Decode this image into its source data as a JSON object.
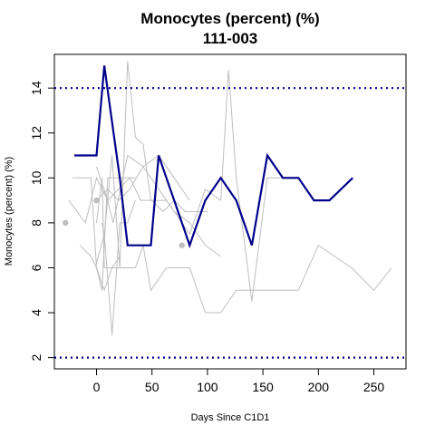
{
  "chart_data": {
    "type": "line",
    "title": "Monocytes (percent) (%)",
    "subtitle": "111-003",
    "xlabel": "Days Since C1D1",
    "ylabel": "Monocytes (percent) (%)",
    "xlim": [
      -38,
      279
    ],
    "ylim": [
      1.5,
      15.5
    ],
    "xticks": [
      0,
      50,
      100,
      150,
      200,
      250
    ],
    "yticks": [
      2,
      4,
      6,
      8,
      10,
      12,
      14
    ],
    "reference_lines": [
      {
        "y": 14,
        "style": "dotted",
        "color": "#00008b"
      },
      {
        "y": 2,
        "style": "dotted",
        "color": "#00008b"
      }
    ],
    "grid": false,
    "colors": {
      "highlight": "#00008b",
      "background": "#bebebe"
    },
    "highlight_series": {
      "x": [
        -20,
        0,
        7,
        14,
        21,
        28,
        35,
        49,
        56,
        63,
        70,
        84,
        98,
        112,
        126,
        140,
        154,
        168,
        182,
        196,
        210,
        231
      ],
      "values": [
        11,
        11,
        15,
        12.5,
        10,
        7,
        7,
        7,
        11,
        10,
        9,
        7,
        9,
        10,
        9,
        7,
        11,
        10,
        10,
        9,
        9,
        10
      ]
    },
    "background_series": [
      {
        "x": [
          -22,
          -5,
          0,
          5,
          10,
          20,
          28,
          35
        ],
        "values": [
          10,
          10,
          6,
          5,
          10,
          10,
          10,
          10
        ]
      },
      {
        "x": [
          -25,
          -10,
          0,
          10,
          20,
          30,
          40,
          50,
          60,
          70,
          80,
          90,
          100
        ],
        "values": [
          9,
          8,
          10,
          9,
          9.5,
          10,
          9,
          9,
          8.5,
          9,
          8.5,
          8.5,
          8.5
        ]
      },
      {
        "x": [
          -15,
          -5,
          0,
          7,
          14,
          21,
          28,
          35,
          42,
          49,
          56,
          63,
          70,
          84,
          98,
          112,
          126,
          140,
          154,
          168,
          182,
          200,
          230,
          250,
          266
        ],
        "values": [
          7,
          6.5,
          6,
          5,
          6,
          6,
          6,
          6,
          7,
          5,
          5.5,
          6,
          6,
          6,
          4,
          4,
          5,
          5,
          5,
          5,
          5,
          7,
          6,
          5,
          6
        ]
      },
      {
        "x": [
          0,
          7,
          14,
          21,
          28,
          35,
          42,
          49,
          56,
          63,
          70,
          84,
          98,
          112,
          119,
          126,
          140,
          154,
          168
        ],
        "values": [
          6.2,
          7.5,
          11,
          6,
          15.2,
          11.8,
          11.5,
          9,
          9,
          9,
          8.5,
          7.5,
          9.5,
          9,
          14.8,
          10,
          4.5,
          10,
          10
        ]
      },
      {
        "x": [
          0,
          10,
          15,
          28,
          42,
          56,
          70,
          84,
          98,
          112
        ],
        "values": [
          10.5,
          9,
          8,
          11,
          10.5,
          9.5,
          8.5,
          8,
          7,
          6.5
        ]
      },
      {
        "x": [
          0,
          5,
          7,
          14,
          21
        ],
        "values": [
          8,
          10,
          6,
          6,
          6.5
        ]
      },
      {
        "x": [
          0,
          10,
          20,
          30,
          42,
          56,
          70,
          84
        ],
        "values": [
          9,
          9.5,
          9,
          9.5,
          10.5,
          11,
          10,
          9
        ]
      },
      {
        "x": [
          5,
          7,
          14,
          21,
          28,
          35
        ],
        "values": [
          8,
          7.5,
          3,
          8,
          8,
          9
        ]
      }
    ],
    "background_points": [
      {
        "x": -28,
        "y": 8
      },
      {
        "x": 0,
        "y": 9
      },
      {
        "x": 77,
        "y": 7
      }
    ]
  }
}
